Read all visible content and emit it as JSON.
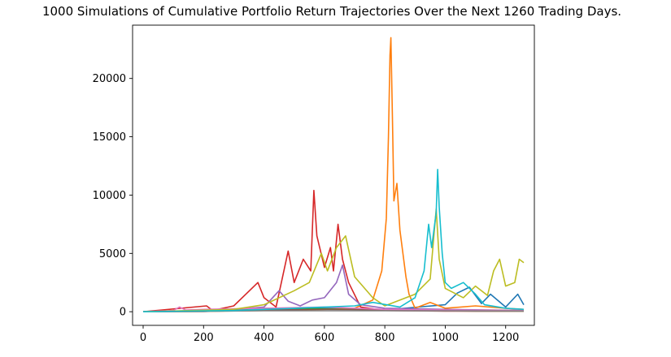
{
  "chart_data": {
    "type": "line",
    "title": "1000 Simulations of Cumulative Portfolio Return Trajectories Over the Next 1260 Trading Days.",
    "xlabel": "",
    "ylabel": "",
    "xlim": [
      -35,
      1295
    ],
    "ylim": [
      -1170,
      24570
    ],
    "x_ticks": [
      0,
      200,
      400,
      600,
      800,
      1000,
      1200
    ],
    "y_ticks": [
      0,
      5000,
      10000,
      15000,
      20000
    ],
    "grid": false,
    "legend": "none",
    "series": [
      {
        "color": "#1f77b4",
        "points": [
          [
            0,
            0
          ],
          [
            200,
            20
          ],
          [
            400,
            150
          ],
          [
            600,
            300
          ],
          [
            800,
            150
          ],
          [
            1000,
            600
          ],
          [
            1040,
            1600
          ],
          [
            1080,
            2100
          ],
          [
            1120,
            700
          ],
          [
            1150,
            1500
          ],
          [
            1200,
            400
          ],
          [
            1240,
            1500
          ],
          [
            1260,
            600
          ]
        ]
      },
      {
        "color": "#ff7f0e",
        "points": [
          [
            0,
            0
          ],
          [
            200,
            30
          ],
          [
            400,
            100
          ],
          [
            600,
            200
          ],
          [
            700,
            300
          ],
          [
            760,
            1000
          ],
          [
            790,
            3500
          ],
          [
            805,
            8000
          ],
          [
            812,
            15000
          ],
          [
            817,
            22000
          ],
          [
            820,
            23500
          ],
          [
            825,
            17000
          ],
          [
            830,
            9500
          ],
          [
            840,
            11000
          ],
          [
            850,
            7000
          ],
          [
            870,
            3000
          ],
          [
            880,
            1500
          ],
          [
            900,
            300
          ],
          [
            950,
            800
          ],
          [
            1000,
            300
          ],
          [
            1100,
            500
          ],
          [
            1200,
            300
          ],
          [
            1260,
            200
          ]
        ]
      },
      {
        "color": "#2ca02c",
        "points": [
          [
            0,
            0
          ],
          [
            200,
            100
          ],
          [
            300,
            200
          ],
          [
            400,
            300
          ],
          [
            500,
            300
          ],
          [
            700,
            200
          ],
          [
            900,
            100
          ],
          [
            1100,
            50
          ],
          [
            1260,
            50
          ]
        ]
      },
      {
        "color": "#d62728",
        "points": [
          [
            0,
            0
          ],
          [
            210,
            500
          ],
          [
            230,
            100
          ],
          [
            300,
            500
          ],
          [
            340,
            1500
          ],
          [
            380,
            2500
          ],
          [
            400,
            1200
          ],
          [
            440,
            400
          ],
          [
            480,
            5200
          ],
          [
            500,
            2500
          ],
          [
            530,
            4500
          ],
          [
            555,
            3500
          ],
          [
            565,
            10400
          ],
          [
            575,
            6500
          ],
          [
            600,
            3800
          ],
          [
            620,
            5500
          ],
          [
            630,
            3500
          ],
          [
            645,
            7500
          ],
          [
            660,
            4500
          ],
          [
            680,
            2500
          ],
          [
            720,
            400
          ],
          [
            800,
            100
          ],
          [
            1000,
            50
          ],
          [
            1260,
            50
          ]
        ]
      },
      {
        "color": "#9467bd",
        "points": [
          [
            0,
            0
          ],
          [
            200,
            50
          ],
          [
            300,
            200
          ],
          [
            400,
            400
          ],
          [
            450,
            1800
          ],
          [
            480,
            900
          ],
          [
            520,
            500
          ],
          [
            560,
            1000
          ],
          [
            600,
            1200
          ],
          [
            640,
            2500
          ],
          [
            660,
            4000
          ],
          [
            680,
            1500
          ],
          [
            720,
            600
          ],
          [
            800,
            300
          ],
          [
            1000,
            200
          ],
          [
            1260,
            100
          ]
        ]
      },
      {
        "color": "#8c564b",
        "points": [
          [
            0,
            0
          ],
          [
            300,
            100
          ],
          [
            600,
            200
          ],
          [
            900,
            150
          ],
          [
            1260,
            100
          ]
        ]
      },
      {
        "color": "#e377c2",
        "points": [
          [
            0,
            0
          ],
          [
            100,
            100
          ],
          [
            120,
            400
          ],
          [
            140,
            150
          ],
          [
            200,
            200
          ],
          [
            400,
            300
          ],
          [
            600,
            400
          ],
          [
            800,
            200
          ],
          [
            1000,
            150
          ],
          [
            1260,
            100
          ]
        ]
      },
      {
        "color": "#7f7f7f",
        "points": [
          [
            0,
            0
          ],
          [
            400,
            80
          ],
          [
            800,
            80
          ],
          [
            1260,
            60
          ]
        ]
      },
      {
        "color": "#bcbd22",
        "points": [
          [
            0,
            0
          ],
          [
            300,
            200
          ],
          [
            400,
            600
          ],
          [
            500,
            1800
          ],
          [
            550,
            2500
          ],
          [
            590,
            5000
          ],
          [
            610,
            3500
          ],
          [
            640,
            5500
          ],
          [
            670,
            6500
          ],
          [
            700,
            3000
          ],
          [
            760,
            1200
          ],
          [
            800,
            500
          ],
          [
            900,
            1500
          ],
          [
            950,
            2800
          ],
          [
            970,
            8800
          ],
          [
            980,
            4500
          ],
          [
            1000,
            2000
          ],
          [
            1060,
            1200
          ],
          [
            1100,
            2200
          ],
          [
            1140,
            1400
          ],
          [
            1160,
            3500
          ],
          [
            1180,
            4500
          ],
          [
            1200,
            2200
          ],
          [
            1230,
            2500
          ],
          [
            1245,
            4500
          ],
          [
            1260,
            4200
          ]
        ]
      },
      {
        "color": "#17becf",
        "points": [
          [
            0,
            0
          ],
          [
            300,
            100
          ],
          [
            500,
            300
          ],
          [
            700,
            500
          ],
          [
            760,
            800
          ],
          [
            850,
            400
          ],
          [
            900,
            1200
          ],
          [
            930,
            3500
          ],
          [
            945,
            7500
          ],
          [
            955,
            5500
          ],
          [
            970,
            8500
          ],
          [
            975,
            12200
          ],
          [
            980,
            9000
          ],
          [
            990,
            5000
          ],
          [
            1000,
            2500
          ],
          [
            1020,
            2000
          ],
          [
            1060,
            2500
          ],
          [
            1100,
            1500
          ],
          [
            1130,
            600
          ],
          [
            1200,
            300
          ],
          [
            1260,
            200
          ]
        ]
      }
    ]
  }
}
